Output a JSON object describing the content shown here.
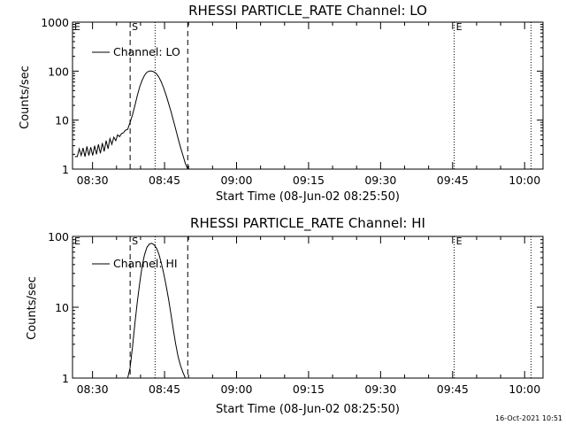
{
  "footer": {
    "timestamp": "16-Oct-2021 10:51"
  },
  "chart_data": [
    {
      "type": "line",
      "title": "RHESSI PARTICLE_RATE Channel: LO",
      "xlabel": "Start Time (08-Jun-02 08:25:50)",
      "ylabel": "Counts/sec",
      "yscale": "log",
      "ylim": [
        1,
        1000
      ],
      "xlim_min": [
        0,
        98
      ],
      "x_ticks_min": [
        4.17,
        19.17,
        34.17,
        49.17,
        64.17,
        79.17,
        94.17
      ],
      "x_tick_labels": [
        "08:30",
        "08:45",
        "09:00",
        "09:15",
        "09:30",
        "09:45",
        "10:00"
      ],
      "y_ticks": [
        1,
        10,
        100,
        1000
      ],
      "y_tick_labels": [
        "1",
        "10",
        "100",
        "1000"
      ],
      "legend": {
        "label": "Channel: LO",
        "position": "top-left"
      },
      "markers": [
        {
          "label": "S",
          "x_min": 12.0,
          "style": "dashed"
        },
        {
          "label": "",
          "x_min": 17.2,
          "style": "dotted"
        },
        {
          "label": "",
          "x_min": 24.0,
          "style": "dashed"
        },
        {
          "label": "E",
          "x_min": 79.5,
          "style": "dotted"
        },
        {
          "label": "",
          "x_min": 95.5,
          "style": "dotted"
        }
      ],
      "edge_label": "E",
      "series": [
        {
          "name": "Channel: LO",
          "x": [
            0.5,
            1.0,
            1.4,
            1.8,
            2.2,
            2.6,
            3.0,
            3.4,
            3.8,
            4.2,
            4.6,
            5.0,
            5.4,
            5.8,
            6.2,
            6.6,
            7.0,
            7.4,
            7.8,
            8.2,
            8.6,
            9.0,
            9.4,
            9.8,
            10.2,
            10.6,
            11.0,
            11.5,
            12.0,
            12.5,
            13.0,
            13.5,
            14.0,
            14.5,
            15.0,
            15.5,
            16.0,
            16.5,
            17.0,
            17.5,
            18.0,
            18.5,
            19.0,
            19.5,
            20.0,
            20.5,
            21.0,
            21.5,
            22.0,
            22.5,
            23.0,
            23.5,
            24.0,
            24.3
          ],
          "values": [
            1.8,
            1.8,
            2.6,
            1.9,
            2.7,
            1.8,
            2.9,
            1.9,
            2.8,
            1.9,
            3.0,
            2.0,
            3.2,
            2.1,
            3.4,
            2.3,
            3.8,
            2.6,
            4.2,
            3.2,
            4.5,
            3.8,
            5.0,
            4.6,
            5.3,
            5.5,
            6.2,
            6.5,
            9.0,
            13.0,
            20.0,
            32.0,
            48.0,
            65.0,
            82.0,
            95.0,
            100.0,
            100.0,
            96.0,
            88.0,
            75.0,
            60.0,
            45.0,
            32.0,
            22.0,
            15.0,
            10.0,
            6.5,
            4.2,
            2.8,
            1.9,
            1.3,
            1.0,
            0.8
          ]
        }
      ]
    },
    {
      "type": "line",
      "title": "RHESSI PARTICLE_RATE Channel: HI",
      "xlabel": "Start Time (08-Jun-02 08:25:50)",
      "ylabel": "Counts/sec",
      "yscale": "log",
      "ylim": [
        1,
        100
      ],
      "xlim_min": [
        0,
        98
      ],
      "x_ticks_min": [
        4.17,
        19.17,
        34.17,
        49.17,
        64.17,
        79.17,
        94.17
      ],
      "x_tick_labels": [
        "08:30",
        "08:45",
        "09:00",
        "09:15",
        "09:30",
        "09:45",
        "10:00"
      ],
      "y_ticks": [
        1,
        10,
        100
      ],
      "y_tick_labels": [
        "1",
        "10",
        "100"
      ],
      "legend": {
        "label": "Channel: HI",
        "position": "top-left"
      },
      "markers": [
        {
          "label": "S",
          "x_min": 12.0,
          "style": "dashed"
        },
        {
          "label": "",
          "x_min": 17.2,
          "style": "dotted"
        },
        {
          "label": "",
          "x_min": 24.0,
          "style": "dashed"
        },
        {
          "label": "E",
          "x_min": 79.5,
          "style": "dotted"
        },
        {
          "label": "",
          "x_min": 95.5,
          "style": "dotted"
        }
      ],
      "edge_label": "E",
      "series": [
        {
          "name": "Channel: HI",
          "x": [
            11.5,
            12.0,
            12.5,
            13.0,
            13.5,
            14.0,
            14.5,
            15.0,
            15.5,
            16.0,
            16.5,
            17.0,
            17.5,
            18.0,
            18.5,
            19.0,
            19.5,
            20.0,
            20.5,
            21.0,
            21.5,
            22.0,
            22.5,
            23.0,
            23.5,
            24.0
          ],
          "values": [
            0.9,
            1.4,
            2.8,
            6.0,
            12.0,
            22.0,
            38.0,
            55.0,
            70.0,
            78.0,
            80.0,
            76.0,
            68.0,
            56.0,
            42.0,
            30.0,
            20.0,
            13.0,
            8.0,
            4.8,
            3.0,
            2.0,
            1.5,
            1.2,
            1.0,
            0.9
          ]
        }
      ]
    }
  ]
}
